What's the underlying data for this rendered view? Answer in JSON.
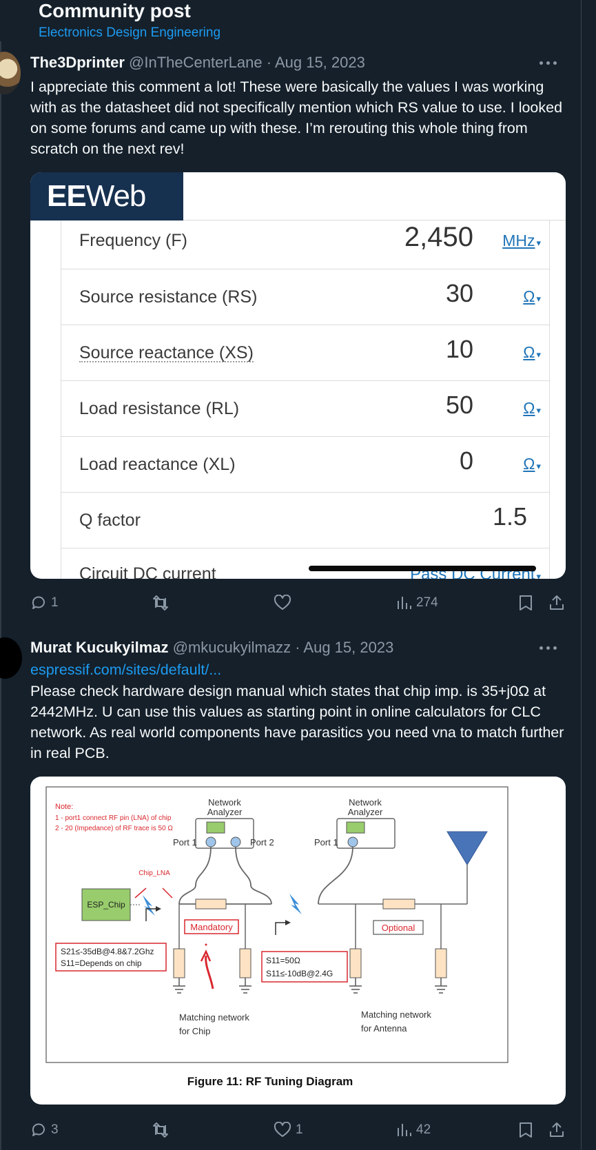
{
  "header": {
    "title": "Community post",
    "community": "Electronics Design Engineering"
  },
  "post1": {
    "author_name": "The3Dprinter",
    "author_handle": "@InTheCenterLane · Aug 15, 2023",
    "text": "I appreciate this comment a lot! These were basically the values I was working with as the datasheet did not specifically mention which RS value to use. I looked on some forums and came up with these. I’m rerouting this whole thing from scratch on the next rev!",
    "image": {
      "logo_bold": "EE",
      "logo_rest": "Web",
      "rows": [
        {
          "label": "Frequency (F)",
          "value": "2,450",
          "unit": "MHz"
        },
        {
          "label": "Source resistance (RS)",
          "value": "30",
          "unit": "Ω"
        },
        {
          "label": "Source reactance (XS)",
          "value": "10",
          "unit": "Ω"
        },
        {
          "label": "Load resistance (RL)",
          "value": "50",
          "unit": "Ω"
        },
        {
          "label": "Load reactance (XL)",
          "value": "0",
          "unit": "Ω"
        },
        {
          "label": "Q factor",
          "value": "1.5",
          "unit": ""
        },
        {
          "label": "Circuit DC current",
          "value": "",
          "unit": "Pass DC Current"
        }
      ]
    },
    "actions": {
      "replies": "1",
      "reposts": "",
      "likes": "",
      "views": "274"
    }
  },
  "post2": {
    "author_name": "Murat Kucukyilmaz",
    "author_handle": "@mkucukyilmazz · Aug 15, 2023",
    "link": "espressif.com/sites/default/...",
    "text": "Please check hardware design manual which states that chip imp. is 35+j0Ω at 2442MHz. U can use this values as starting point in online calculators for CLC network. As real world components have parasitics you need vna to match further in real PCB.",
    "figure": {
      "note_title": "Note:",
      "note_line1": "1 - port1 connect RF pin (LNA) of chip",
      "note_line2": "2 - 20 (Impedance) of RF trace is 50 Ω",
      "analyzer_label_1": "Network",
      "analyzer_label_2": "Analyzer",
      "port1": "Port 1",
      "port2": "Port 2",
      "chip_lna": "Chip_LNA",
      "esp_chip": "ESP_Chip",
      "mandatory": "Mandatory",
      "optional": "Optional",
      "s21_line": "S21≤-35dB@4.8&7.2Ghz",
      "s11_depends": "S11=Depends on chip",
      "s11_50": "S11=50Ω",
      "s11_10db": "S11≤-10dB@2.4G",
      "match_chip_1": "Matching network",
      "match_chip_2": "for Chip",
      "match_ant_1": "Matching network",
      "match_ant_2": "for Antenna",
      "caption": "Figure 11: RF Tuning Diagram"
    },
    "actions": {
      "replies": "3",
      "reposts": "",
      "likes": "1",
      "views": "42"
    }
  },
  "colors": {
    "background": "#15202b",
    "accent": "#1d9bf0",
    "muted": "#8b98a5",
    "diagram_red": "#d9272e",
    "diagram_green": "#98cc6c",
    "diagram_blue": "#4a74b8"
  }
}
